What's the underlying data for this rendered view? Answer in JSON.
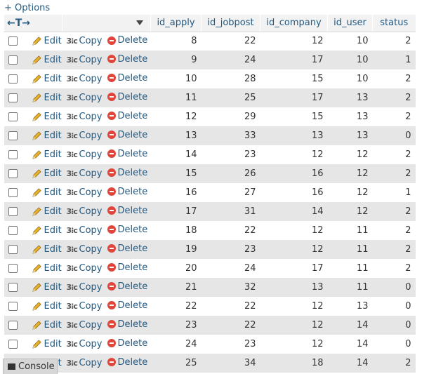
{
  "options_label": "+ Options",
  "header": {
    "arrows": "←T→",
    "columns": [
      "id_apply",
      "id_jobpost",
      "id_company",
      "id_user",
      "status"
    ]
  },
  "actions": {
    "edit": "Edit",
    "copy": "Copy",
    "delete": "Delete"
  },
  "rows": [
    {
      "id_apply": "8",
      "id_jobpost": "22",
      "id_company": "12",
      "id_user": "10",
      "status": "2"
    },
    {
      "id_apply": "9",
      "id_jobpost": "24",
      "id_company": "17",
      "id_user": "10",
      "status": "1"
    },
    {
      "id_apply": "10",
      "id_jobpost": "28",
      "id_company": "15",
      "id_user": "10",
      "status": "2"
    },
    {
      "id_apply": "11",
      "id_jobpost": "25",
      "id_company": "17",
      "id_user": "13",
      "status": "2"
    },
    {
      "id_apply": "12",
      "id_jobpost": "29",
      "id_company": "15",
      "id_user": "13",
      "status": "2"
    },
    {
      "id_apply": "13",
      "id_jobpost": "33",
      "id_company": "13",
      "id_user": "13",
      "status": "0"
    },
    {
      "id_apply": "14",
      "id_jobpost": "23",
      "id_company": "12",
      "id_user": "12",
      "status": "2"
    },
    {
      "id_apply": "15",
      "id_jobpost": "26",
      "id_company": "16",
      "id_user": "12",
      "status": "2"
    },
    {
      "id_apply": "16",
      "id_jobpost": "27",
      "id_company": "16",
      "id_user": "12",
      "status": "1"
    },
    {
      "id_apply": "17",
      "id_jobpost": "31",
      "id_company": "14",
      "id_user": "12",
      "status": "2"
    },
    {
      "id_apply": "18",
      "id_jobpost": "22",
      "id_company": "12",
      "id_user": "11",
      "status": "2"
    },
    {
      "id_apply": "19",
      "id_jobpost": "23",
      "id_company": "12",
      "id_user": "11",
      "status": "2"
    },
    {
      "id_apply": "20",
      "id_jobpost": "24",
      "id_company": "17",
      "id_user": "11",
      "status": "2"
    },
    {
      "id_apply": "21",
      "id_jobpost": "32",
      "id_company": "13",
      "id_user": "11",
      "status": "0"
    },
    {
      "id_apply": "22",
      "id_jobpost": "22",
      "id_company": "12",
      "id_user": "13",
      "status": "0"
    },
    {
      "id_apply": "23",
      "id_jobpost": "22",
      "id_company": "12",
      "id_user": "14",
      "status": "0"
    },
    {
      "id_apply": "24",
      "id_jobpost": "23",
      "id_company": "12",
      "id_user": "14",
      "status": "0"
    },
    {
      "id_apply": "25",
      "id_jobpost": "34",
      "id_company": "18",
      "id_user": "14",
      "status": "2"
    }
  ],
  "console_label": "Console",
  "colors": {
    "link": "#235a81",
    "row_alt": "#e6e6e6",
    "header_bg": "#f2f2f2",
    "delete_icon": "#e0453b"
  },
  "icons": {
    "edit": "pencil-icon",
    "copy": "copy-icon",
    "delete": "delete-icon",
    "sort": "sort-triangle-icon",
    "console": "console-icon"
  }
}
